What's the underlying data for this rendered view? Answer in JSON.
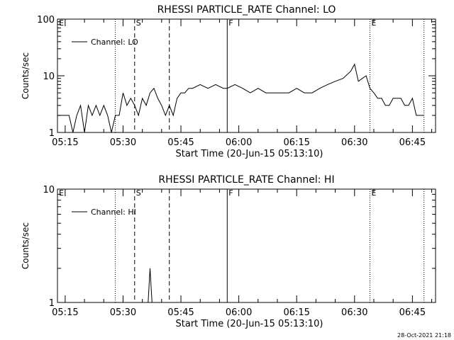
{
  "footer_date": "28-Oct-2021 21:18",
  "chart_data": [
    {
      "type": "line",
      "title": "RHESSI PARTICLE_RATE Channel: LO",
      "xlabel": "Start Time (20-Jun-15 05:13:10)",
      "ylabel": "Counts/sec",
      "yscale": "log",
      "ylim": [
        1,
        100
      ],
      "xlim": [
        "05:13",
        "06:51"
      ],
      "x_ticks": [
        "05:15",
        "05:30",
        "05:45",
        "06:00",
        "06:15",
        "06:30",
        "06:45"
      ],
      "y_ticks": [
        "1",
        "10",
        "100"
      ],
      "legend": {
        "label": "Channel: LO",
        "placement": "top-left"
      },
      "markers": [
        {
          "label": "E",
          "time": "05:13",
          "style": "none"
        },
        {
          "label": "",
          "time": "05:28",
          "style": "dotted"
        },
        {
          "label": "S",
          "time": "05:33",
          "style": "dashed"
        },
        {
          "label": "",
          "time": "05:42",
          "style": "dashed"
        },
        {
          "label": "F",
          "time": "05:57",
          "style": "solid"
        },
        {
          "label": "E",
          "time": "06:34",
          "style": "dotted"
        },
        {
          "label": "",
          "time": "06:48",
          "style": "dotted"
        }
      ],
      "series": [
        {
          "name": "Channel: LO",
          "x": [
            "05:13",
            "05:16",
            "05:17",
            "05:18",
            "05:19",
            "05:20",
            "05:21",
            "05:22",
            "05:23",
            "05:24",
            "05:25",
            "05:26",
            "05:27",
            "05:28",
            "05:29",
            "05:30",
            "05:31",
            "05:32",
            "05:33",
            "05:34",
            "05:35",
            "05:36",
            "05:37",
            "05:38",
            "05:39",
            "05:40",
            "05:41",
            "05:42",
            "05:43",
            "05:44",
            "05:45",
            "05:46",
            "05:47",
            "05:48",
            "05:50",
            "05:52",
            "05:54",
            "05:56",
            "05:57",
            "05:59",
            "06:01",
            "06:03",
            "06:05",
            "06:07",
            "06:09",
            "06:11",
            "06:13",
            "06:15",
            "06:17",
            "06:19",
            "06:21",
            "06:23",
            "06:25",
            "06:27",
            "06:29",
            "06:30",
            "06:31",
            "06:32",
            "06:33",
            "06:34",
            "06:35",
            "06:36",
            "06:37",
            "06:38",
            "06:39",
            "06:40",
            "06:41",
            "06:42",
            "06:43",
            "06:44",
            "06:45",
            "06:46",
            "06:47",
            "06:48"
          ],
          "values": [
            2,
            2,
            1,
            2,
            3,
            1,
            3,
            2,
            3,
            2,
            3,
            2,
            1,
            2,
            2,
            5,
            3,
            4,
            3,
            2,
            4,
            3,
            5,
            6,
            4,
            3,
            2,
            3,
            2,
            4,
            5,
            5,
            6,
            6,
            7,
            6,
            7,
            6,
            6,
            7,
            6,
            5,
            6,
            5,
            5,
            5,
            5,
            6,
            5,
            5,
            6,
            7,
            8,
            9,
            12,
            16,
            8,
            9,
            10,
            6,
            5,
            4,
            4,
            3,
            3,
            4,
            4,
            4,
            3,
            3,
            4,
            2,
            2,
            2
          ]
        }
      ]
    },
    {
      "type": "line",
      "title": "RHESSI PARTICLE_RATE Channel: HI",
      "xlabel": "Start Time (20-Jun-15 05:13:10)",
      "ylabel": "Counts/sec",
      "yscale": "log",
      "ylim": [
        1,
        10
      ],
      "xlim": [
        "05:13",
        "06:51"
      ],
      "x_ticks": [
        "05:15",
        "05:30",
        "05:45",
        "06:00",
        "06:15",
        "06:30",
        "06:45"
      ],
      "y_ticks": [
        "1",
        "10"
      ],
      "legend": {
        "label": "Channel: HI",
        "placement": "top-left"
      },
      "markers": [
        {
          "label": "E",
          "time": "05:13",
          "style": "none"
        },
        {
          "label": "",
          "time": "05:28",
          "style": "dotted"
        },
        {
          "label": "S",
          "time": "05:33",
          "style": "dashed"
        },
        {
          "label": "",
          "time": "05:42",
          "style": "dashed"
        },
        {
          "label": "F",
          "time": "05:57",
          "style": "solid"
        },
        {
          "label": "E",
          "time": "06:34",
          "style": "dotted"
        },
        {
          "label": "",
          "time": "06:48",
          "style": "dotted"
        }
      ],
      "series": [
        {
          "name": "Channel: HI",
          "x": [
            "05:36.5",
            "05:37",
            "05:37.5"
          ],
          "values": [
            1,
            2,
            1
          ]
        }
      ]
    }
  ]
}
